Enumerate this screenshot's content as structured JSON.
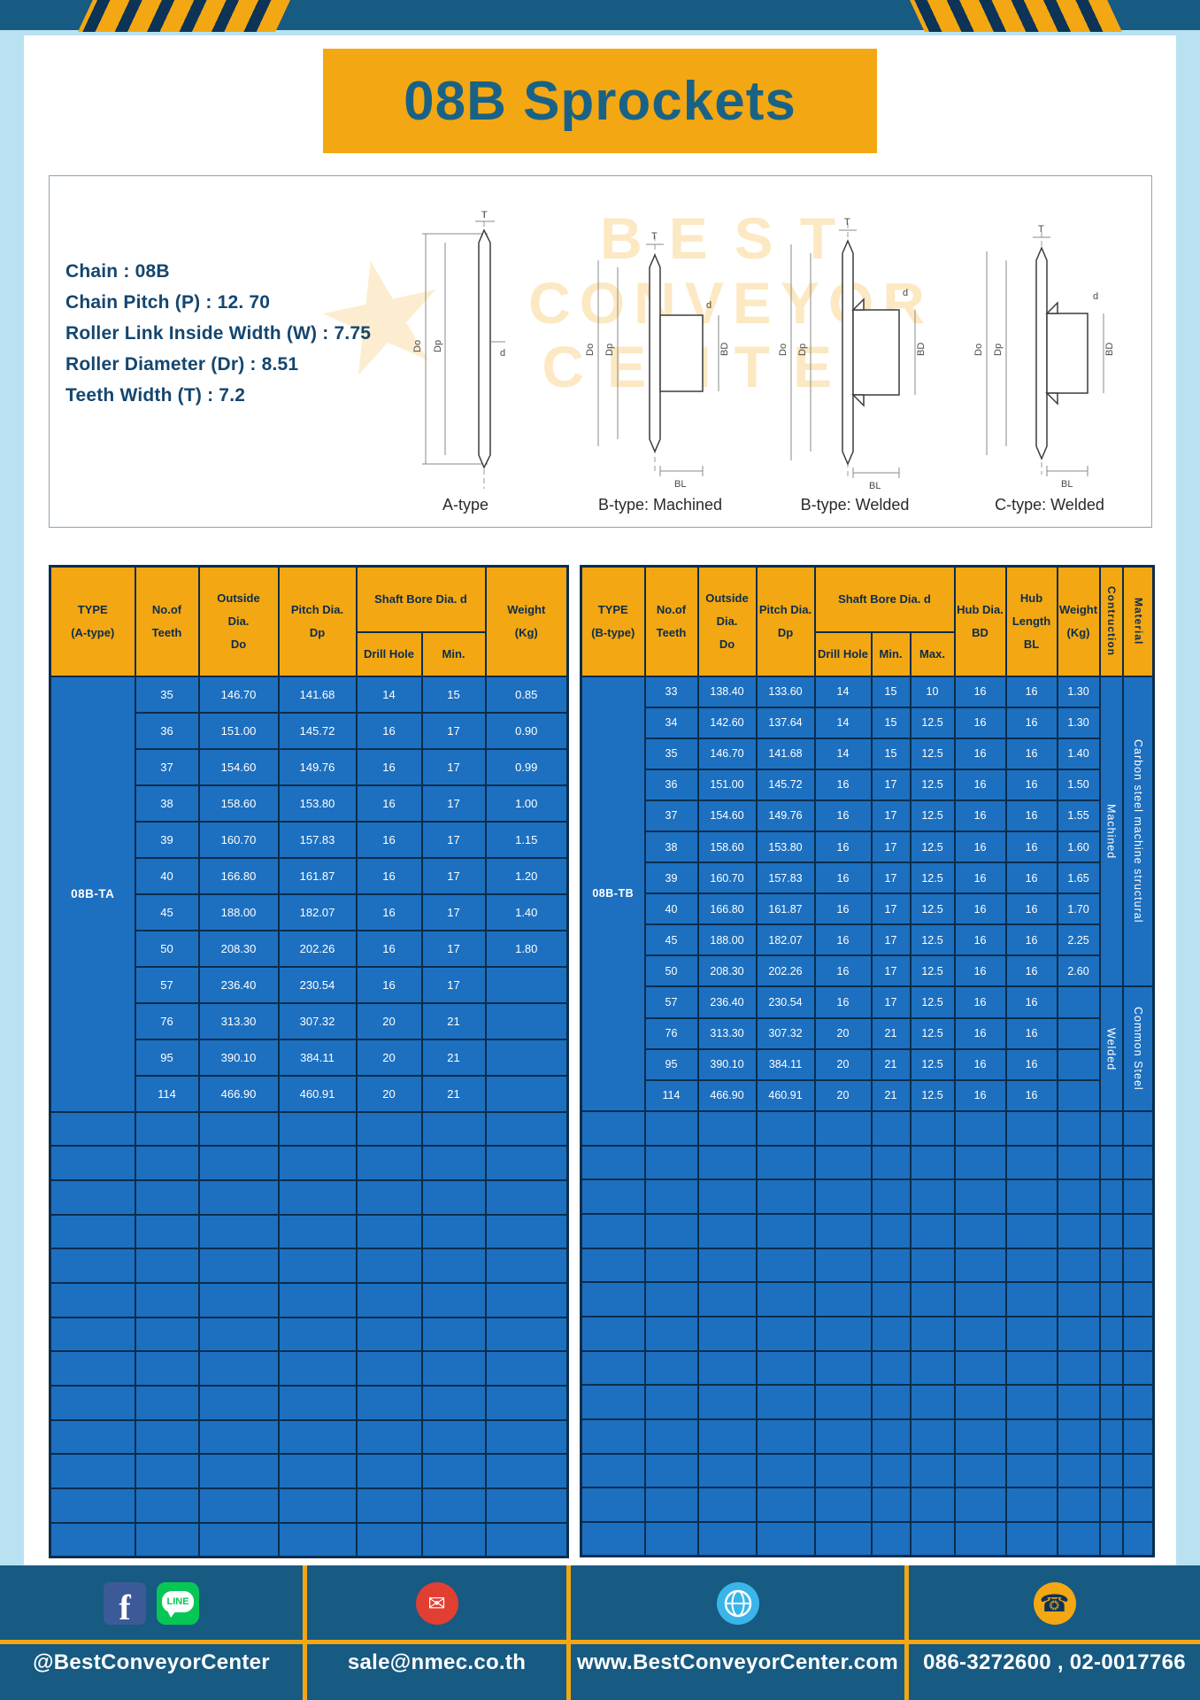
{
  "colors": {
    "accent_yellow": "#f3a712",
    "dark_blue": "#175a82",
    "table_blue": "#1d70c0",
    "navy": "#0b2d4d",
    "page_light_blue": "#b9e1f1"
  },
  "header": {
    "title": "08B Sprockets"
  },
  "specs": {
    "lines": [
      "Chain  :  08B",
      "Chain Pitch (P)  :  12. 70",
      "Roller Link Inside Width (W)  :  7.75",
      "Roller Diameter (Dr)  :  8.51",
      "Teeth Width (T)  :  7.2"
    ]
  },
  "diagrams": {
    "labels": [
      "A-type",
      "B-type: Machined",
      "B-type: Welded",
      "C-type: Welded"
    ],
    "dims": {
      "T": "T",
      "Do": "Do",
      "Dp": "Dp",
      "d": "d",
      "BD": "BD",
      "BL": "BL"
    },
    "watermark": {
      "line1": "BEST",
      "line2": "CONVEYOR",
      "line3": "CENTER",
      "star": "★"
    }
  },
  "left_table": {
    "headers": {
      "type": "TYPE\n(A-type)",
      "teeth": "No.of\nTeeth",
      "outside": "Outside\nDia.\nDo",
      "pitch": "Pitch Dia.\nDp",
      "shaft": "Shaft Bore Dia. d",
      "drill": "Drill Hole",
      "min": "Min.",
      "weight": "Weight\n(Kg)"
    },
    "type_value": "08B-TA",
    "rows": [
      [
        "35",
        "146.70",
        "141.68",
        "14",
        "15",
        "0.85"
      ],
      [
        "36",
        "151.00",
        "145.72",
        "16",
        "17",
        "0.90"
      ],
      [
        "37",
        "154.60",
        "149.76",
        "16",
        "17",
        "0.99"
      ],
      [
        "38",
        "158.60",
        "153.80",
        "16",
        "17",
        "1.00"
      ],
      [
        "39",
        "160.70",
        "157.83",
        "16",
        "17",
        "1.15"
      ],
      [
        "40",
        "166.80",
        "161.87",
        "16",
        "17",
        "1.20"
      ],
      [
        "45",
        "188.00",
        "182.07",
        "16",
        "17",
        "1.40"
      ],
      [
        "50",
        "208.30",
        "202.26",
        "16",
        "17",
        "1.80"
      ],
      [
        "57",
        "236.40",
        "230.54",
        "16",
        "17",
        ""
      ],
      [
        "76",
        "313.30",
        "307.32",
        "20",
        "21",
        ""
      ],
      [
        "95",
        "390.10",
        "384.11",
        "20",
        "21",
        ""
      ],
      [
        "114",
        "466.90",
        "460.91",
        "20",
        "21",
        ""
      ]
    ],
    "empty_row_count": 13
  },
  "right_table": {
    "headers": {
      "type": "TYPE\n(B-type)",
      "teeth": "No.of\nTeeth",
      "outside": "Outside\nDia.\nDo",
      "pitch": "Pitch Dia.\nDp",
      "shaft": "Shaft Bore Dia. d",
      "drill": "Drill Hole",
      "min": "Min.",
      "max": "Max.",
      "hub_dia": "Hub Dia.\nBD",
      "hub_len": "Hub\nLength\nBL",
      "weight": "Weight\n(Kg)",
      "construction": "Contruction",
      "material": "Material"
    },
    "type_value": "08B-TB",
    "rows": [
      [
        "33",
        "138.40",
        "133.60",
        "14",
        "15",
        "10",
        "16",
        "16",
        "1.30"
      ],
      [
        "34",
        "142.60",
        "137.64",
        "14",
        "15",
        "12.5",
        "16",
        "16",
        "1.30"
      ],
      [
        "35",
        "146.70",
        "141.68",
        "14",
        "15",
        "12.5",
        "16",
        "16",
        "1.40"
      ],
      [
        "36",
        "151.00",
        "145.72",
        "16",
        "17",
        "12.5",
        "16",
        "16",
        "1.50"
      ],
      [
        "37",
        "154.60",
        "149.76",
        "16",
        "17",
        "12.5",
        "16",
        "16",
        "1.55"
      ],
      [
        "38",
        "158.60",
        "153.80",
        "16",
        "17",
        "12.5",
        "16",
        "16",
        "1.60"
      ],
      [
        "39",
        "160.70",
        "157.83",
        "16",
        "17",
        "12.5",
        "16",
        "16",
        "1.65"
      ],
      [
        "40",
        "166.80",
        "161.87",
        "16",
        "17",
        "12.5",
        "16",
        "16",
        "1.70"
      ],
      [
        "45",
        "188.00",
        "182.07",
        "16",
        "17",
        "12.5",
        "16",
        "16",
        "2.25"
      ],
      [
        "50",
        "208.30",
        "202.26",
        "16",
        "17",
        "12.5",
        "16",
        "16",
        "2.60"
      ],
      [
        "57",
        "236.40",
        "230.54",
        "16",
        "17",
        "12.5",
        "16",
        "16",
        ""
      ],
      [
        "76",
        "313.30",
        "307.32",
        "20",
        "21",
        "12.5",
        "16",
        "16",
        ""
      ],
      [
        "95",
        "390.10",
        "384.11",
        "20",
        "21",
        "12.5",
        "16",
        "16",
        ""
      ],
      [
        "114",
        "466.90",
        "460.91",
        "20",
        "21",
        "12.5",
        "16",
        "16",
        ""
      ]
    ],
    "construction_groups": [
      {
        "label": "Machined",
        "span": 10
      },
      {
        "label": "Welded",
        "span": 4
      }
    ],
    "material_groups": [
      {
        "label": "Carbon steel  machine  structural",
        "span": 10
      },
      {
        "label": "Common  Steel",
        "span": 4
      }
    ],
    "empty_row_count": 13
  },
  "footer": {
    "glyphs": {
      "facebook": "f",
      "line": "LINE",
      "email": "✉",
      "phone": "☎"
    },
    "sections": [
      {
        "label": "@BestConveyorCenter"
      },
      {
        "label": "sale@nmec.co.th"
      },
      {
        "label": "www.BestConveyorCenter.com"
      },
      {
        "label": "086-3272600 , 02-0017766"
      }
    ]
  }
}
